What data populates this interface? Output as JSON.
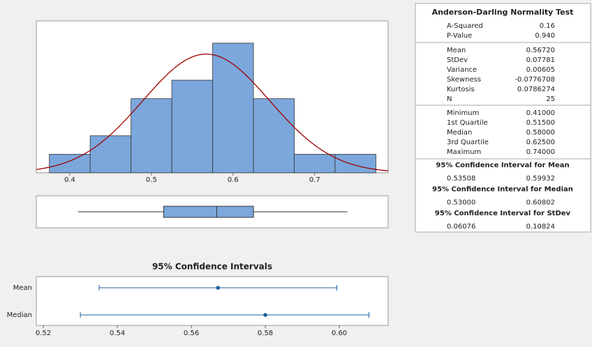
{
  "chart_data": [
    {
      "type": "histogram",
      "bins": [
        0.375,
        0.425,
        0.475,
        0.525,
        0.575,
        0.625,
        0.675,
        0.725,
        0.775
      ],
      "counts": [
        1,
        2,
        4,
        5,
        7,
        4,
        1,
        1
      ],
      "color": "#7ba7dc",
      "fit_color": "#a00000",
      "xlim": [
        0.359,
        0.79
      ],
      "ylim": [
        0,
        8.2
      ],
      "xticks": [
        0.4,
        0.5,
        0.6,
        0.7
      ]
    },
    {
      "type": "box",
      "min": 0.41,
      "q1": 0.515,
      "median": 0.58,
      "q3": 0.625,
      "max": 0.74,
      "color": "#7ba7dc",
      "xlim": [
        0.359,
        0.79
      ]
    },
    {
      "type": "interval",
      "title": "95% Confidence Intervals",
      "categories": [
        "Mean",
        "Median"
      ],
      "estimates": [
        0.5672,
        0.58
      ],
      "lower": [
        0.53508,
        0.53
      ],
      "upper": [
        0.59932,
        0.60802
      ],
      "color": "#1f5f9f",
      "xlim": [
        0.5181,
        0.6132
      ],
      "xticks": [
        0.52,
        0.54,
        0.56,
        0.58,
        {
          "value": 0.6,
          "label": "0.60"
        }
      ]
    }
  ],
  "summary": {
    "title": "Anderson-Darling Normality Test",
    "sections": [
      [
        [
          "A-Squared",
          "0.16"
        ],
        [
          "P-Value",
          "0.940"
        ]
      ],
      [
        [
          "Mean",
          "0.56720"
        ],
        [
          "StDev",
          "0.07781"
        ],
        [
          "Variance",
          "0.00605"
        ],
        [
          "Skewness",
          "-0.0776708"
        ],
        [
          "Kurtosis",
          "0.0786274"
        ],
        [
          "N",
          "25"
        ]
      ],
      [
        [
          "Minimum",
          "0.41000"
        ],
        [
          "1st Quartile",
          "0.51500"
        ],
        [
          "Median",
          "0.58000"
        ],
        [
          "3rd Quartile",
          "0.62500"
        ],
        [
          "Maximum",
          "0.74000"
        ]
      ]
    ],
    "intervals": [
      {
        "title": "95% Confidence Interval for Mean",
        "values": [
          "0.53508",
          "0.59932"
        ]
      },
      {
        "title": "95% Confidence Interval for Median",
        "values": [
          "0.53000",
          "0.60802"
        ]
      },
      {
        "title": "95% Confidence Interval for StDev",
        "values": [
          "0.06076",
          "0.10824"
        ]
      }
    ]
  },
  "fit": {
    "mean": 0.5672,
    "sd": 0.07781,
    "n": 25
  }
}
